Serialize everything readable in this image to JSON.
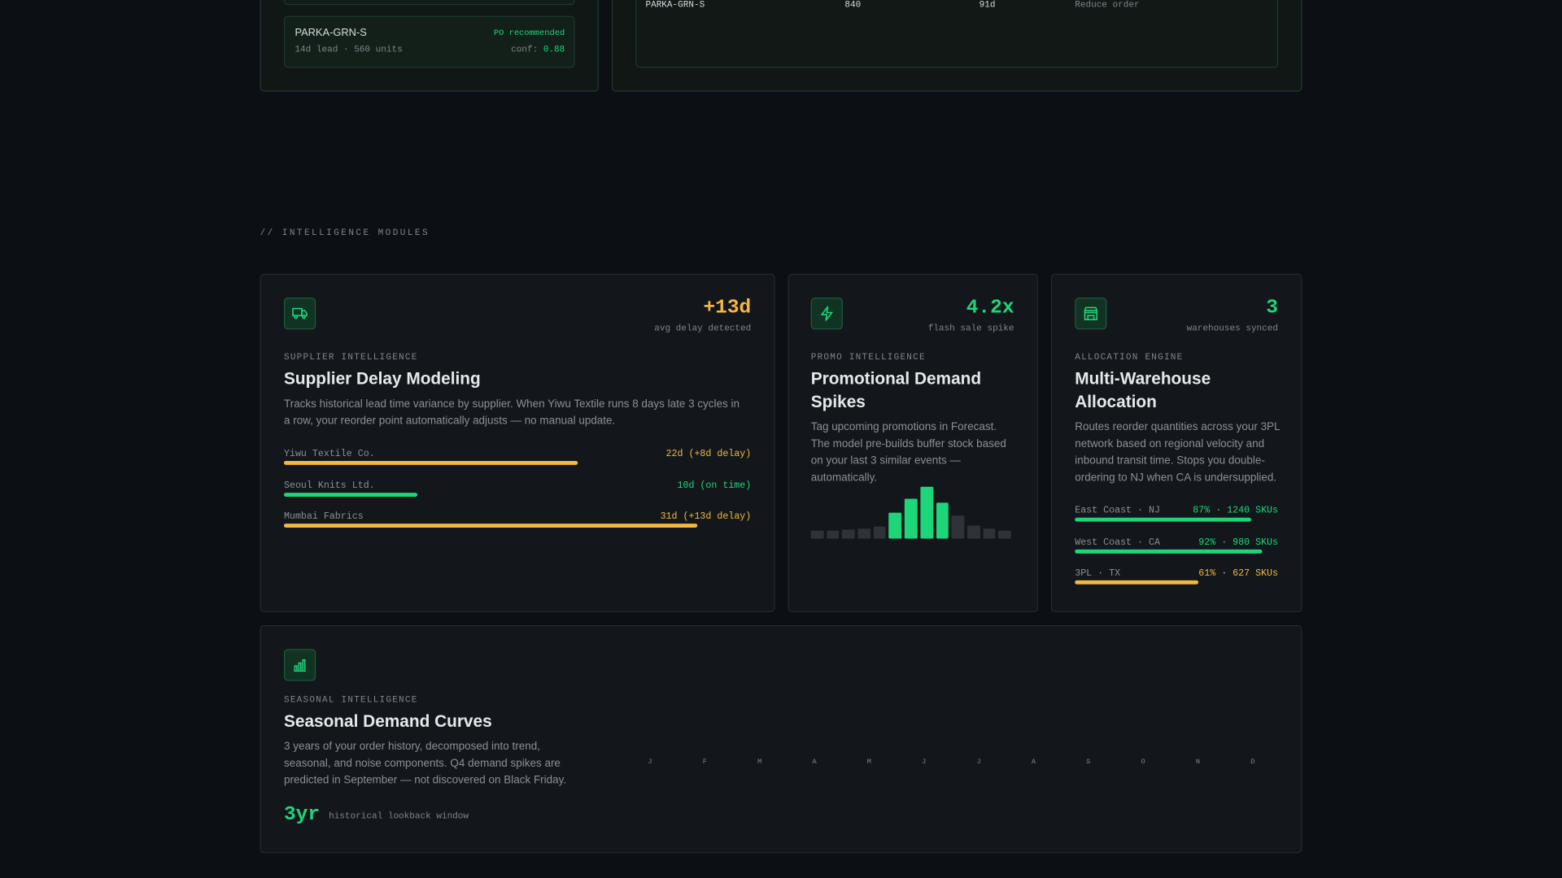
{
  "top": {
    "left_item": {
      "sku": "PARKA-GRN-S",
      "status": "PO recommended",
      "detail": "14d lead · 560 units",
      "conf_label": "conf:",
      "conf": "0.88"
    },
    "right_row": {
      "sku": "PARKA-GRN-S",
      "qty": "840",
      "days": "91d",
      "action": "Reduce order"
    }
  },
  "section_label": "// INTELLIGENCE MODULES",
  "modules": [
    {
      "metric": "+13d",
      "metric_label": "avg delay detected",
      "eyebrow": "SUPPLIER INTELLIGENCE",
      "title": "Supplier Delay Modeling",
      "description": "Tracks historical lead time variance by supplier. When Yiwu Textile runs 8 days late 3 cycles in a row, your reorder point automatically adjusts — no manual update.",
      "xlim": [
        0,
        35
      ],
      "rows": [
        {
          "name": "Yiwu Textile Co.",
          "value": 22,
          "label": "22d (+8d delay)",
          "color": "#f4b740"
        },
        {
          "name": "Seoul Knits Ltd.",
          "value": 10,
          "label": "10d (on time)",
          "color": "#1ed67a"
        },
        {
          "name": "Mumbai Fabrics",
          "value": 31,
          "label": "31d (+13d delay)",
          "color": "#f4b740"
        }
      ]
    },
    {
      "metric": "4.2x",
      "metric_label": "flash sale spike",
      "eyebrow": "PROMO INTELLIGENCE",
      "title": "Promotional Demand Spikes",
      "description": "Tag upcoming promotions in Forecast. The model pre-builds buffer stock based on your last 3 similar events — automatically.",
      "ylim": [
        0,
        52
      ],
      "values": [
        8,
        8,
        9,
        10,
        12,
        26,
        40,
        52,
        36,
        23,
        13,
        10,
        8
      ],
      "colors": [
        "#2e3338",
        "#2e3338",
        "#2e3338",
        "#2e3338",
        "#2e3338",
        "#1ed67a",
        "#1ed67a",
        "#1ed67a",
        "#1ed67a",
        "#2e3338",
        "#2e3338",
        "#2e3338",
        "#2e3338"
      ]
    },
    {
      "metric": "3",
      "metric_label": "warehouses synced",
      "eyebrow": "ALLOCATION ENGINE",
      "title": "Multi-Warehouse Allocation",
      "description": "Routes reorder quantities across your 3PL network based on regional velocity and inbound transit time. Stops you double-ordering to NJ when CA is undersupplied.",
      "xlim": [
        0,
        100
      ],
      "rows": [
        {
          "name": "East Coast · NJ",
          "value": 87,
          "label": "87% · 1240 SKUs",
          "color": "#1ed67a"
        },
        {
          "name": "West Coast · CA",
          "value": 92,
          "label": "92% · 980 SKUs",
          "color": "#1ed67a"
        },
        {
          "name": "3PL · TX",
          "value": 61,
          "label": "61% · 627 SKUs",
          "color": "#f4b740"
        }
      ]
    },
    {
      "eyebrow": "SEASONAL INTELLIGENCE",
      "title": "Seasonal Demand Curves",
      "description": "3 years of your order history, decomposed into trend, seasonal, and noise components. Q4 demand spikes are predicted in September — not discovered on Black Friday.",
      "metric": "3yr",
      "metric_label": "historical lookback window",
      "months": [
        "J",
        "F",
        "M",
        "A",
        "M",
        "J",
        "J",
        "A",
        "S",
        "O",
        "N",
        "D"
      ]
    }
  ]
}
